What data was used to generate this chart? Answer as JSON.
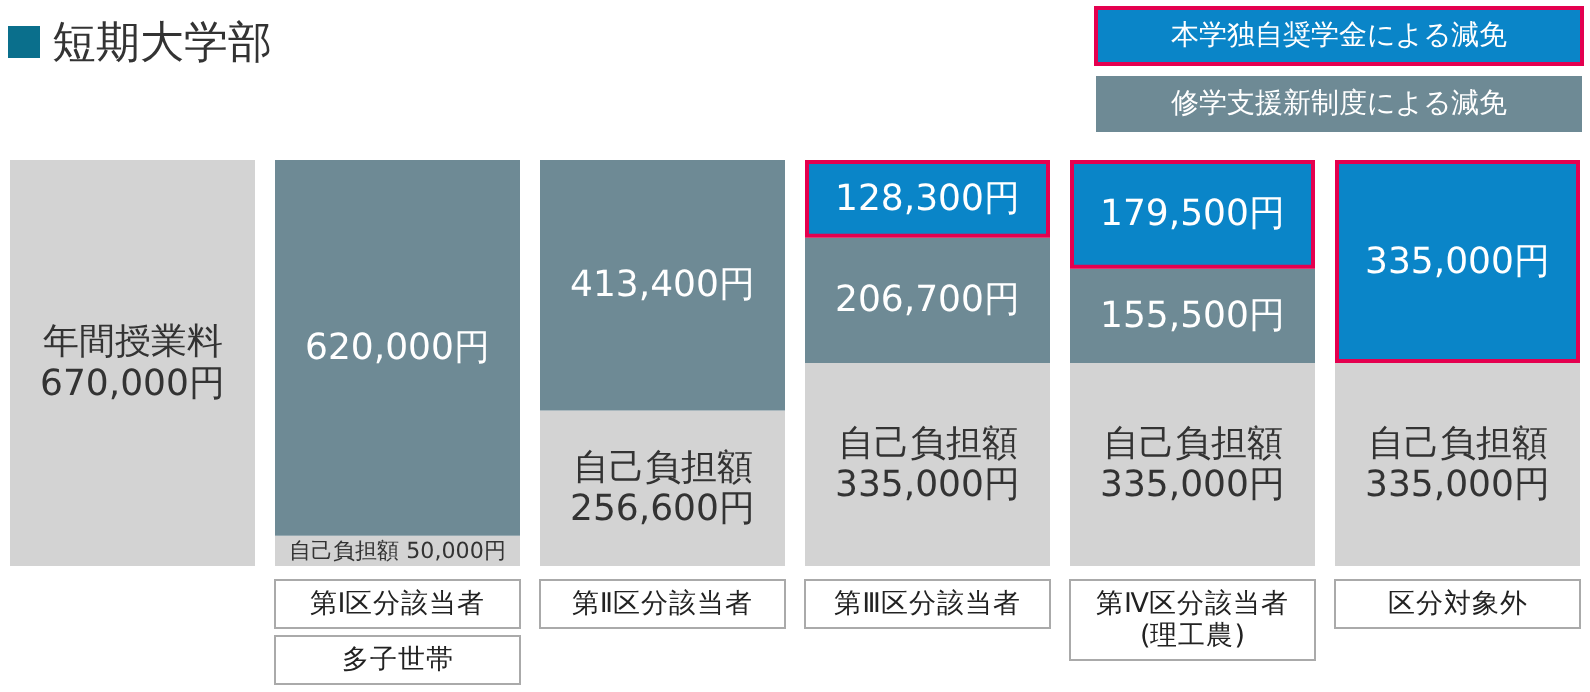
{
  "chart_data": {
    "type": "bar",
    "stacked": true,
    "title": "短期大学部",
    "legend": "top right",
    "categories": [
      null,
      "第Ⅰ区分該当者",
      "第Ⅱ区分該当者",
      "第Ⅲ区分該当者",
      "第Ⅳ区分該当者\n(理工農)",
      "区分対象外"
    ],
    "series": [
      {
        "color": "#d3d3d3",
        "values": [
          670000,
          null,
          null,
          null,
          null,
          null
        ],
        "value_labels": [
          "年間授業料\n670,000円",
          null,
          null,
          null,
          null,
          null
        ]
      },
      {
        "color": "#d3d3d3",
        "values": [
          null,
          50000,
          256600,
          335000,
          335000,
          335000
        ],
        "value_labels": [
          null,
          "自己負担額\n50,000円",
          "自己負担額\n256,600円",
          "自己負担額\n335,000円",
          "自己負担額\n335,000円",
          "自己負担額\n335,000円"
        ]
      },
      {
        "name": "修学支援新制度による減免",
        "color": "#6e8a95",
        "values": [
          null,
          620000,
          413400,
          206700,
          155500,
          null
        ],
        "value_labels": [
          null,
          "620,000円",
          "413,400円",
          "206,700円",
          "155,500円",
          null
        ]
      },
      {
        "name": "本学独自奨学金による減免",
        "color": "#0a85c8",
        "values": [
          null,
          null,
          null,
          128300,
          179500,
          335000
        ],
        "value_labels": [
          null,
          null,
          null,
          "128,300円",
          "179,500円",
          "335,000円"
        ]
      }
    ],
    "annotations": [
      "多子世帯"
    ]
  }
}
